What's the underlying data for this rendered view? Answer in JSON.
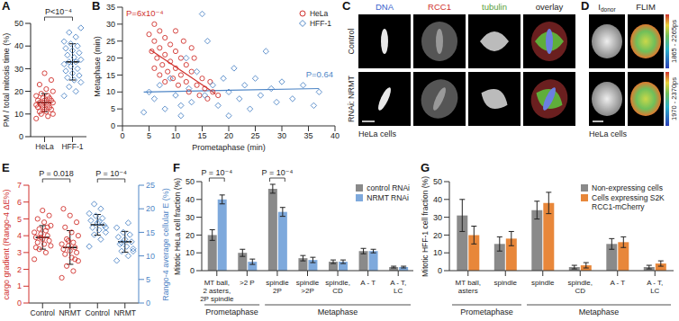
{
  "chart_data": [
    {
      "panel": "A",
      "type": "strip",
      "categories": [
        "HeLa",
        "HFF-1"
      ],
      "ylabel": "PM / total mitosis time (%)",
      "ylim": [
        0,
        50
      ],
      "yticks": [
        0,
        10,
        20,
        30,
        40,
        50
      ],
      "annotations": [
        {
          "text": "P<10⁻⁴",
          "categories": [
            0,
            1
          ]
        }
      ],
      "series": [
        {
          "color": "#d0312d",
          "marker": "circle",
          "values": [
            [
              8,
              9,
              10,
              10,
              11,
              11,
              12,
              12,
              13,
              13,
              13,
              14,
              14,
              14,
              15,
              15,
              15,
              16,
              16,
              16,
              17,
              17,
              18,
              18,
              19,
              20,
              21,
              23,
              25,
              28
            ],
            null
          ],
          "mean": [
            15,
            null
          ],
          "sd": [
            4,
            null
          ]
        },
        {
          "color": "#4f86c6",
          "marker": "diamond",
          "values": [
            null,
            [
              18,
              20,
              22,
              24,
              25,
              26,
              27,
              28,
              29,
              30,
              31,
              32,
              33,
              33,
              34,
              35,
              36,
              37,
              38,
              39,
              40,
              41,
              42,
              44,
              46,
              48
            ]
          ],
          "mean": [
            null,
            33
          ],
          "sd": [
            null,
            8
          ]
        }
      ]
    },
    {
      "panel": "B",
      "type": "scatter",
      "xlabel": "Prometaphase (min)",
      "ylabel": "Metaphase (min)",
      "xlim": [
        0,
        40
      ],
      "xticks": [
        0,
        5,
        10,
        15,
        20,
        25,
        30,
        35,
        40
      ],
      "ylim": [
        0,
        35
      ],
      "yticks": [
        0,
        5,
        10,
        15,
        20,
        25,
        30,
        35
      ],
      "legend": "upper right",
      "series": [
        {
          "name": "HeLa",
          "color": "#d0312d",
          "marker": "circle",
          "annotation": "P=6x10⁻⁴",
          "x": [
            5,
            5.5,
            6,
            6,
            6.5,
            7,
            7,
            7.5,
            8,
            8,
            8.5,
            9,
            9,
            9.5,
            10,
            10,
            10.5,
            11,
            11,
            11.5,
            12,
            12,
            12.5,
            13,
            13.5,
            14,
            14.5,
            15,
            15.5,
            16,
            16.5,
            17,
            18,
            6,
            8,
            10,
            7,
            13
          ],
          "y": [
            27,
            22,
            30,
            25,
            20,
            28,
            23,
            18,
            26,
            21,
            16,
            24,
            19,
            14,
            22,
            17,
            12,
            20,
            15,
            25,
            18,
            13,
            10,
            16,
            20,
            12,
            9,
            14,
            11,
            8,
            13,
            10,
            9,
            17,
            13,
            28,
            15,
            23
          ],
          "fit": {
            "x": [
              5.2,
              17.5
            ],
            "y": [
              22.5,
              9.5
            ]
          }
        },
        {
          "name": "HFF-1",
          "color": "#4f86c6",
          "marker": "diamond",
          "annotation": "P=0.64",
          "x": [
            4,
            5,
            6,
            7,
            8,
            9,
            10,
            11,
            12,
            12.5,
            13,
            14,
            15,
            15.5,
            16,
            17,
            18,
            19,
            20,
            21,
            22,
            23,
            24,
            25,
            26,
            27,
            28,
            29,
            30,
            32,
            34,
            36,
            37,
            11,
            20
          ],
          "y": [
            4,
            10,
            8,
            12,
            5,
            14,
            9,
            6,
            20,
            11,
            7,
            16,
            33,
            9,
            25,
            12,
            6,
            14,
            10,
            17,
            8,
            12,
            5,
            14,
            9,
            22,
            11,
            7,
            13,
            8,
            12,
            6,
            10,
            3,
            3
          ],
          "fit": {
            "x": [
              4,
              37
            ],
            "y": [
              10,
              11
            ]
          }
        }
      ]
    },
    {
      "panel": "E",
      "type": "strip",
      "categories": [
        "Control",
        "NRMT",
        "Control",
        "NRMT"
      ],
      "ylabel": "cargo gradient (Rango-4 ΔE%)",
      "y2label": "Rango-4 average cellular E (%)",
      "ylim": [
        0,
        7
      ],
      "yticks": [
        0,
        1,
        2,
        3,
        4,
        5,
        6,
        7
      ],
      "y2lim": [
        0,
        25
      ],
      "y2ticks": [
        0,
        5,
        10,
        15,
        20,
        25
      ],
      "annotations": [
        {
          "text": "P = 0.018",
          "categories": [
            0,
            1
          ]
        },
        {
          "text": "P = 10⁻⁴",
          "categories": [
            2,
            3
          ]
        }
      ],
      "series": [
        {
          "color": "#d0312d",
          "marker": "circle",
          "axis": "y",
          "values": [
            [
              2.6,
              3.0,
              3.2,
              3.4,
              3.5,
              3.6,
              3.7,
              3.8,
              3.9,
              4.0,
              4.1,
              4.2,
              4.3,
              4.4,
              4.6,
              4.8,
              5.0,
              5.2,
              5.5,
              3.3,
              4.5,
              3.9
            ],
            [
              1.5,
              1.9,
              2.2,
              2.5,
              2.7,
              2.9,
              3.0,
              3.1,
              3.2,
              3.3,
              3.4,
              3.5,
              3.6,
              3.8,
              4.0,
              4.2,
              4.5,
              4.8,
              5.2,
              5.6,
              2.6,
              3.7
            ],
            null,
            null
          ],
          "mean": [
            3.9,
            3.3,
            null,
            null
          ],
          "sd": [
            0.7,
            1.0,
            null,
            null
          ]
        },
        {
          "color": "#4f86c6",
          "marker": "diamond",
          "axis": "y2",
          "values": [
            null,
            null,
            [
              12,
              13.5,
              14.5,
              15,
              15.5,
              16,
              16.5,
              17,
              17.5,
              18,
              18.5,
              19,
              20,
              21,
              16,
              17.2
            ],
            [
              9,
              10,
              11,
              11.5,
              12,
              12.5,
              13,
              13.5,
              14,
              14.5,
              15,
              16,
              17,
              12.8,
              11
            ]
          ],
          "mean": [
            null,
            null,
            16.6,
            13
          ],
          "sd": [
            null,
            null,
            2.2,
            2.2
          ]
        }
      ]
    },
    {
      "panel": "F",
      "type": "bar",
      "categories": [
        "MT ball,\n2 asters,\n2P spindle",
        ">2 P",
        "spindle\n2P",
        "spindle\n>2P",
        "spindle,\nCD",
        "A - T",
        "A - T,\nLC"
      ],
      "groups": [
        {
          "label": "Prometaphase",
          "categories": [
            0,
            1
          ]
        },
        {
          "label": "Metaphase",
          "categories": [
            2,
            6
          ]
        }
      ],
      "ylabel": "Mitotic HeLa cell fraction (%)",
      "ylim": [
        0,
        50
      ],
      "yticks": [
        0,
        10,
        20,
        30,
        40,
        50
      ],
      "legend": "upper right",
      "annotations": [
        {
          "text": "P = 10⁻⁴",
          "categories": [
            0
          ]
        },
        {
          "text": "P = 10⁻⁴",
          "categories": [
            2
          ]
        }
      ],
      "series": [
        {
          "name": "control RNAi",
          "color": "#8a8a8a",
          "values": [
            20,
            10,
            46,
            7,
            5,
            11,
            2
          ],
          "errors": [
            3,
            2,
            2.5,
            1.5,
            1,
            1.5,
            0.5
          ]
        },
        {
          "name": "NRMT RNAi",
          "color": "#7ea9dc",
          "values": [
            40,
            5,
            33,
            6,
            5,
            11,
            2
          ],
          "errors": [
            2.5,
            1.5,
            2.5,
            1.5,
            1,
            1,
            0.5
          ]
        }
      ]
    },
    {
      "panel": "G",
      "type": "bar",
      "categories": [
        "MT ball,\nasters",
        "spindle",
        "spindle",
        "spindle,\nCD",
        "A - T",
        "A - T,\nLC"
      ],
      "groups": [
        {
          "label": "Prometaphase",
          "categories": [
            0,
            1
          ]
        },
        {
          "label": "Metaphase",
          "categories": [
            2,
            5
          ]
        }
      ],
      "ylabel": "Mitotic HFF-1 cell fraction (%)",
      "ylim": [
        0,
        50
      ],
      "yticks": [
        0,
        10,
        20,
        30,
        40,
        50
      ],
      "legend": "upper right",
      "annotations": [],
      "series": [
        {
          "name": "Non-expressing cells",
          "color": "#8a8a8a",
          "values": [
            31,
            15,
            34,
            2,
            15,
            2
          ],
          "errors": [
            9,
            4,
            5,
            1,
            3,
            1
          ]
        },
        {
          "name": "Cells expressing S2K RCC1-mCherry",
          "color": "#e8873a",
          "values": [
            20,
            18,
            38,
            3,
            16,
            4
          ],
          "errors": [
            5,
            4,
            6,
            1.5,
            3,
            1.5
          ]
        }
      ]
    }
  ],
  "image_panels": [
    {
      "panel": "C",
      "columns": [
        {
          "label": "DNA",
          "color": "#3a5fcd"
        },
        {
          "label": "RCC1",
          "color": "#d0312d"
        },
        {
          "label": "tubulin",
          "color": "#5a9e3a"
        },
        {
          "label": "overlay",
          "color": "#222222"
        }
      ],
      "rows": [
        "Control",
        "RNAi: NRMT"
      ],
      "caption": "HeLa cells"
    },
    {
      "panel": "D",
      "columns": [
        {
          "label": "I",
          "subscript": "donor"
        },
        {
          "label": "FLIM"
        }
      ],
      "color_ranges": [
        "1865 - 2265ps",
        "1970 - 2370ps"
      ],
      "caption": "HeLa cells"
    }
  ]
}
